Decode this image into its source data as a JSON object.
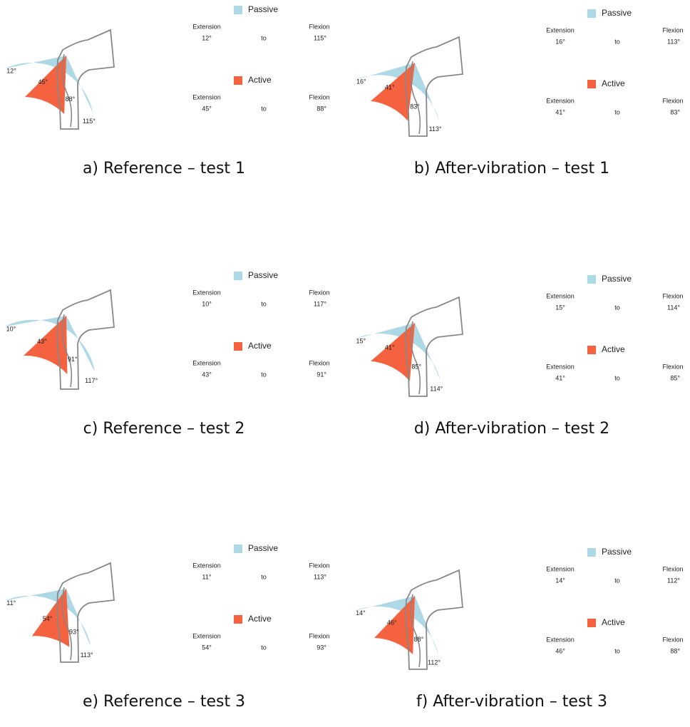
{
  "legend": {
    "passive": "Passive",
    "active": "Active",
    "extension": "Extension",
    "flexion": "Flexion",
    "to": "to"
  },
  "colors": {
    "passive": "#add8e6",
    "active": "#f4623f"
  },
  "panels": [
    {
      "caption": "a) Reference – test 1",
      "passive": {
        "extension": 12,
        "extension_label": "12°",
        "flexion": 115,
        "flexion_label": "115°"
      },
      "active": {
        "extension": 45,
        "extension_label": "45°",
        "flexion": 88,
        "flexion_label": "88°"
      }
    },
    {
      "caption": "b) After-vibration – test 1",
      "passive": {
        "extension": 16,
        "extension_label": "16°",
        "flexion": 113,
        "flexion_label": "113°"
      },
      "active": {
        "extension": 41,
        "extension_label": "41°",
        "flexion": 83,
        "flexion_label": "83°"
      }
    },
    {
      "caption": "c) Reference – test 2",
      "passive": {
        "extension": 10,
        "extension_label": "10°",
        "flexion": 117,
        "flexion_label": "117°"
      },
      "active": {
        "extension": 43,
        "extension_label": "43°",
        "flexion": 91,
        "flexion_label": "91°"
      }
    },
    {
      "caption": "d) After-vibration – test 2",
      "passive": {
        "extension": 15,
        "extension_label": "15°",
        "flexion": 114,
        "flexion_label": "114°"
      },
      "active": {
        "extension": 41,
        "extension_label": "41°",
        "flexion": 85,
        "flexion_label": "85°"
      }
    },
    {
      "caption": "e) Reference – test 3",
      "passive": {
        "extension": 11,
        "extension_label": "11°",
        "flexion": 113,
        "flexion_label": "113°"
      },
      "active": {
        "extension": 54,
        "extension_label": "54°",
        "flexion": 93,
        "flexion_label": "93°"
      }
    },
    {
      "caption": "f) After-vibration – test 3",
      "passive": {
        "extension": 14,
        "extension_label": "14°",
        "flexion": 112,
        "flexion_label": "112°"
      },
      "active": {
        "extension": 46,
        "extension_label": "46°",
        "flexion": 88,
        "flexion_label": "88°"
      }
    }
  ]
}
